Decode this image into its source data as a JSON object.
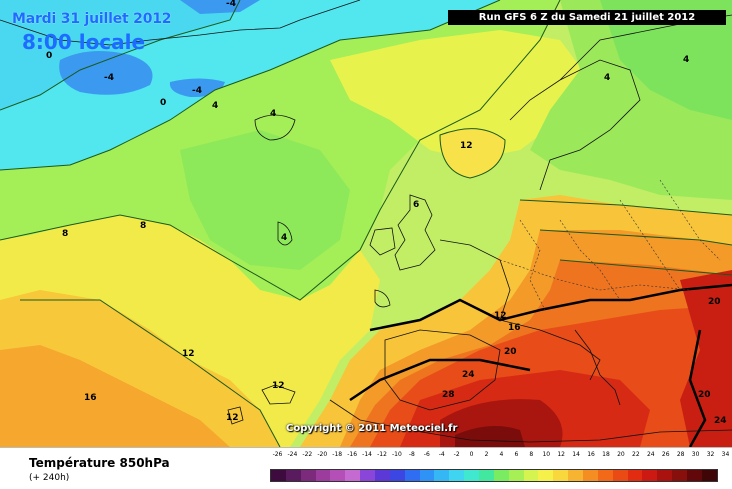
{
  "header": {
    "date": "Mardi 31 juillet 2012",
    "time": "8:00 locale",
    "run": "Run GFS 6 Z du Samedi 21 juillet 2012"
  },
  "copyright": "Copyright © 2011 Meteociel.fr",
  "legend": {
    "title": "Température 850hPa",
    "subtitle": "(+ 240h)",
    "ticks": [
      "-26",
      "-24",
      "-22",
      "-20",
      "-18",
      "-16",
      "-14",
      "-12",
      "-10",
      "-8",
      "-6",
      "-4",
      "-2",
      "0",
      "2",
      "4",
      "6",
      "8",
      "10",
      "12",
      "14",
      "16",
      "18",
      "20",
      "22",
      "24",
      "26",
      "28",
      "30",
      "32",
      "34"
    ],
    "colors": [
      "#3d0b3e",
      "#5a1a5e",
      "#7c2a7c",
      "#9c3c9c",
      "#b34fb7",
      "#c56ad0",
      "#8a46d9",
      "#5c38d6",
      "#3b46e3",
      "#2f6ef2",
      "#2f92f6",
      "#35b6f5",
      "#3fd5f0",
      "#3fe8ce",
      "#42e8a0",
      "#79ec62",
      "#a6f056",
      "#d6f44f",
      "#f6f04a",
      "#f8d83c",
      "#f6b430",
      "#f48d22",
      "#f26a18",
      "#ea4a14",
      "#e22c12",
      "#cc1a12",
      "#a9120e",
      "#87100c",
      "#63080a",
      "#3e0606"
    ]
  },
  "isotherm_labels": [
    "-4",
    "-4",
    "-4",
    "0",
    "0",
    "4",
    "4",
    "4",
    "4",
    "8",
    "8",
    "12",
    "12",
    "12",
    "12",
    "12",
    "16",
    "16",
    "20",
    "20",
    "20",
    "24",
    "24",
    "28",
    "6",
    "4"
  ]
}
